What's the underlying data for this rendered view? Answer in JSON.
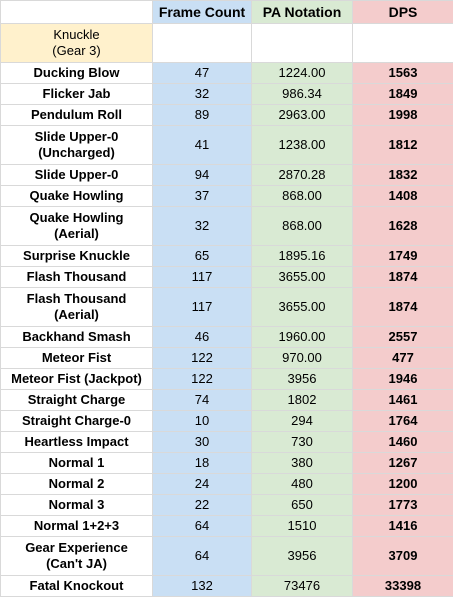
{
  "headers": {
    "frame_count": "Frame Count",
    "pa_notation": "PA Notation",
    "dps": "DPS"
  },
  "character": {
    "line1": "Knuckle",
    "line2": "(Gear 3)"
  },
  "rows": [
    {
      "name": [
        "Ducking Blow"
      ],
      "frame": "47",
      "pa": "1224.00",
      "dps": "1563"
    },
    {
      "name": [
        "Flicker Jab"
      ],
      "frame": "32",
      "pa": "986.34",
      "dps": "1849"
    },
    {
      "name": [
        "Pendulum Roll"
      ],
      "frame": "89",
      "pa": "2963.00",
      "dps": "1998"
    },
    {
      "name": [
        "Slide Upper-0",
        "(Uncharged)"
      ],
      "frame": "41",
      "pa": "1238.00",
      "dps": "1812"
    },
    {
      "name": [
        "Slide Upper-0"
      ],
      "frame": "94",
      "pa": "2870.28",
      "dps": "1832"
    },
    {
      "name": [
        "Quake Howling"
      ],
      "frame": "37",
      "pa": "868.00",
      "dps": "1408"
    },
    {
      "name": [
        "Quake Howling",
        "(Aerial)"
      ],
      "frame": "32",
      "pa": "868.00",
      "dps": "1628"
    },
    {
      "name": [
        "Surprise Knuckle"
      ],
      "frame": "65",
      "pa": "1895.16",
      "dps": "1749"
    },
    {
      "name": [
        "Flash Thousand"
      ],
      "frame": "117",
      "pa": "3655.00",
      "dps": "1874"
    },
    {
      "name": [
        "Flash Thousand",
        "(Aerial)"
      ],
      "frame": "117",
      "pa": "3655.00",
      "dps": "1874"
    },
    {
      "name": [
        "Backhand Smash"
      ],
      "frame": "46",
      "pa": "1960.00",
      "dps": "2557"
    },
    {
      "name": [
        "Meteor Fist"
      ],
      "frame": "122",
      "pa": "970.00",
      "dps": "477"
    },
    {
      "name": [
        "Meteor Fist (Jackpot)"
      ],
      "frame": "122",
      "pa": "3956",
      "dps": "1946"
    },
    {
      "name": [
        "Straight Charge"
      ],
      "frame": "74",
      "pa": "1802",
      "dps": "1461"
    },
    {
      "name": [
        "Straight Charge-0"
      ],
      "frame": "10",
      "pa": "294",
      "dps": "1764"
    },
    {
      "name": [
        "Heartless Impact"
      ],
      "frame": "30",
      "pa": "730",
      "dps": "1460"
    },
    {
      "name": [
        "Normal 1"
      ],
      "frame": "18",
      "pa": "380",
      "dps": "1267"
    },
    {
      "name": [
        "Normal 2"
      ],
      "frame": "24",
      "pa": "480",
      "dps": "1200"
    },
    {
      "name": [
        "Normal 3"
      ],
      "frame": "22",
      "pa": "650",
      "dps": "1773"
    },
    {
      "name": [
        "Normal 1+2+3"
      ],
      "frame": "64",
      "pa": "1510",
      "dps": "1416"
    },
    {
      "name": [
        "Gear Experience",
        "(Can't JA)"
      ],
      "frame": "64",
      "pa": "3956",
      "dps": "3709"
    },
    {
      "name": [
        "Fatal Knockout"
      ],
      "frame": "132",
      "pa": "73476",
      "dps": "33398"
    }
  ],
  "colors": {
    "frame_col": "#c9dff4",
    "pa_col": "#d9ead3",
    "dps_col": "#f4cccc",
    "character_cell": "#fff1cc",
    "grid_line": "#d9d9d9"
  }
}
